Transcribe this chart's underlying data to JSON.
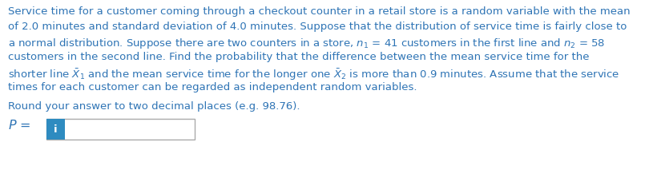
{
  "background_color": "#ffffff",
  "text_color": "#2E74B5",
  "font_size_main": 9.5,
  "font_size_p": 11.5,
  "line1": "Service time for a customer coming through a checkout counter in a retail store is a random variable with the mean",
  "line2": "of 2.0 minutes and standard deviation of 4.0 minutes. Suppose that the distribution of service time is fairly close to",
  "line3": "a normal distribution. Suppose there are two counters in a store, $n_1$ = 41 customers in the first line and $n_2$ = 58",
  "line4": "customers in the second line. Find the probability that the difference between the mean service time for the",
  "line5": "shorter line $\\bar{X}_1$ and the mean service time for the longer one $\\bar{X}_2$ is more than 0.9 minutes. Assume that the service",
  "line6": "times for each customer can be regarded as independent random variables.",
  "round_text": "Round your answer to two decimal places (e.g. 98.76).",
  "p_label": "$P$ =",
  "input_box_color": "#ffffff",
  "input_box_border": "#aaaaaa",
  "input_icon_color": "#2E8BC0",
  "icon_text": "i"
}
